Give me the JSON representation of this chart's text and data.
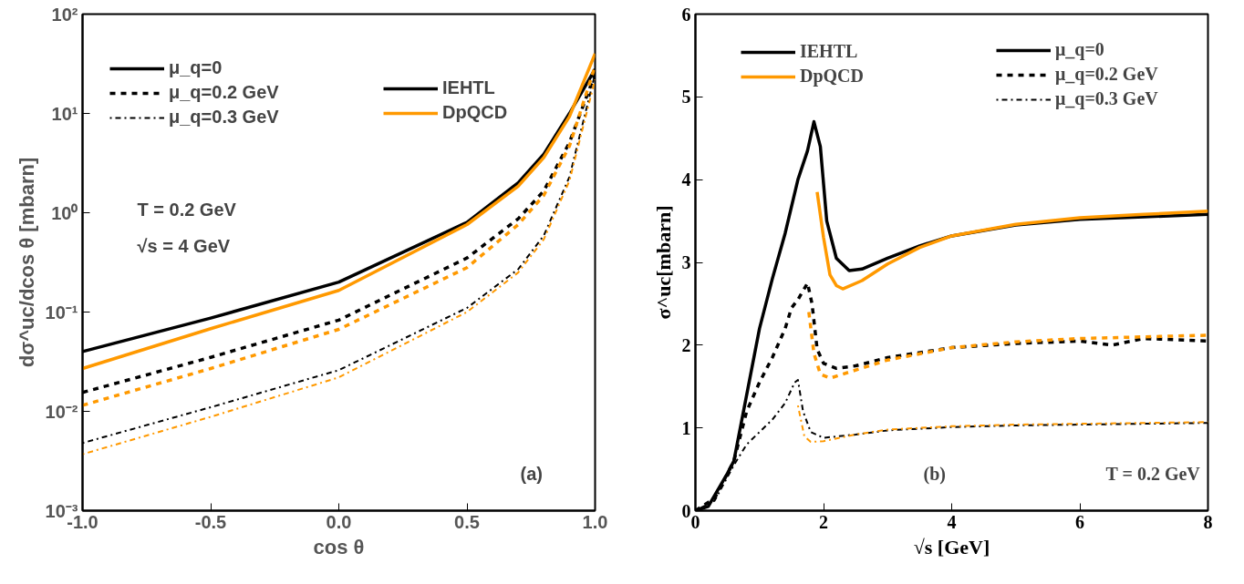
{
  "chart_data": [
    {
      "type": "line",
      "log": "y",
      "xlabel": "cos θ",
      "ylabel": "dσ^uc/dcos θ [mbarn]",
      "x": [
        -1,
        -0.5,
        0,
        0.5,
        0.7,
        0.8,
        0.9,
        1
      ],
      "xlim": [
        -1,
        1
      ],
      "xticks": [
        {
          "value": -1,
          "label": "-1.0"
        },
        {
          "value": -0.5,
          "label": "-0.5"
        },
        {
          "value": 0,
          "label": "0.0"
        },
        {
          "value": 0.5,
          "label": "0.5"
        },
        {
          "value": 1,
          "label": "1.0"
        }
      ],
      "ylim": [
        0.001,
        100
      ],
      "yticks": [
        {
          "value": 0.001,
          "label": "10⁻³"
        },
        {
          "value": 0.01,
          "label": "10⁻²"
        },
        {
          "value": 0.1,
          "label": "10⁻¹"
        },
        {
          "value": 1,
          "label": "10⁰"
        },
        {
          "value": 10,
          "label": "10¹"
        },
        {
          "value": 100,
          "label": "10²"
        }
      ],
      "series": [
        {
          "color": "#000000",
          "line_style": "solid",
          "values": [
            0.04,
            0.087,
            0.2,
            0.8,
            2.0,
            3.9,
            10,
            28
          ]
        },
        {
          "color": "#ff9900",
          "line_style": "solid",
          "values": [
            0.027,
            0.068,
            0.165,
            0.76,
            1.85,
            3.6,
            9.3,
            40
          ]
        },
        {
          "color": "#000000",
          "line_style": "dashed",
          "values": [
            0.0155,
            0.035,
            0.083,
            0.35,
            0.87,
            1.66,
            5.1,
            25
          ]
        },
        {
          "color": "#ff9900",
          "line_style": "dashed",
          "values": [
            0.0115,
            0.027,
            0.067,
            0.28,
            0.76,
            1.5,
            4.7,
            30
          ]
        },
        {
          "color": "#000000",
          "line_style": "dotdash",
          "values": [
            0.0048,
            0.011,
            0.026,
            0.11,
            0.27,
            0.59,
            2.3,
            25
          ]
        },
        {
          "color": "#ff9900",
          "line_style": "dotdash",
          "values": [
            0.0037,
            0.0088,
            0.022,
            0.1,
            0.25,
            0.54,
            2.1,
            22
          ]
        }
      ],
      "annotations": [
        "μ_q=0",
        "μ_q=0.2 GeV",
        "μ_q=0.3 GeV",
        "IEHTL",
        "DpQCD",
        "T = 0.2 GeV",
        "√s = 4 GeV",
        "(a)"
      ]
    },
    {
      "type": "line",
      "xlabel": "√s [GeV]",
      "ylabel": "σ^uc[mbarn]",
      "xlim": [
        0,
        8
      ],
      "xticks": [
        0,
        2,
        4,
        6,
        8
      ],
      "ylim": [
        0,
        6
      ],
      "yticks": [
        0,
        1,
        2,
        3,
        4,
        5,
        6
      ],
      "series": [
        {
          "color": "#000000",
          "line_style": "solid",
          "x": [
            0,
            0.2,
            0.5,
            0.6,
            0.8,
            1.0,
            1.2,
            1.4,
            1.6,
            1.75,
            1.85,
            1.95,
            2.05,
            2.2,
            2.4,
            2.6,
            3,
            3.5,
            4,
            5,
            6,
            7,
            8
          ],
          "values": [
            0,
            0.05,
            0.45,
            0.6,
            1.4,
            2.2,
            2.8,
            3.35,
            4.0,
            4.35,
            4.7,
            4.4,
            3.5,
            3.05,
            2.9,
            2.92,
            3.05,
            3.2,
            3.32,
            3.45,
            3.52,
            3.55,
            3.58
          ]
        },
        {
          "color": "#ff9900",
          "line_style": "solid",
          "x": [
            1.9,
            2.0,
            2.1,
            2.2,
            2.3,
            2.6,
            3,
            3.5,
            4,
            5,
            6,
            7,
            8
          ],
          "values": [
            3.85,
            3.3,
            2.85,
            2.72,
            2.68,
            2.78,
            2.98,
            3.18,
            3.32,
            3.46,
            3.54,
            3.58,
            3.62
          ]
        },
        {
          "color": "#000000",
          "line_style": "dashed",
          "x": [
            0,
            0.3,
            0.6,
            0.8,
            1.0,
            1.2,
            1.4,
            1.5,
            1.6,
            1.75,
            1.82,
            1.9,
            2.0,
            2.2,
            2.5,
            3,
            4,
            5,
            6,
            6.5,
            7,
            8
          ],
          "values": [
            0,
            0.15,
            0.6,
            1.2,
            1.55,
            1.85,
            2.2,
            2.45,
            2.55,
            2.75,
            2.5,
            1.95,
            1.78,
            1.72,
            1.75,
            1.85,
            1.97,
            2.02,
            2.05,
            2.0,
            2.08,
            2.05
          ]
        },
        {
          "color": "#ff9900",
          "line_style": "dashed",
          "x": [
            1.77,
            1.85,
            1.95,
            2.1,
            2.3,
            3,
            4,
            5,
            6,
            7,
            8
          ],
          "values": [
            2.4,
            1.9,
            1.65,
            1.6,
            1.65,
            1.82,
            1.97,
            2.04,
            2.08,
            2.1,
            2.12
          ]
        },
        {
          "color": "#000000",
          "line_style": "dotdash",
          "x": [
            0,
            0.3,
            0.6,
            0.8,
            1.0,
            1.2,
            1.4,
            1.55,
            1.6,
            1.68,
            1.8,
            2.0,
            2.5,
            3,
            4,
            5,
            6,
            7,
            8
          ],
          "values": [
            0,
            0.12,
            0.55,
            0.8,
            0.95,
            1.1,
            1.3,
            1.55,
            1.58,
            1.2,
            0.95,
            0.88,
            0.92,
            0.97,
            1.01,
            1.03,
            1.04,
            1.05,
            1.06
          ]
        },
        {
          "color": "#ff9900",
          "line_style": "dotdash",
          "x": [
            1.6,
            1.7,
            1.8,
            2.0,
            2.5,
            3,
            4,
            5,
            6,
            7,
            8
          ],
          "values": [
            1.27,
            0.9,
            0.83,
            0.84,
            0.92,
            0.98,
            1.02,
            1.04,
            1.05,
            1.06,
            1.07
          ]
        }
      ],
      "annotations": [
        "IEHTL",
        "DpQCD",
        "μ_q=0",
        "μ_q=0.2 GeV",
        "μ_q=0.3 GeV",
        "(b)",
        "T = 0.2 GeV"
      ]
    }
  ]
}
